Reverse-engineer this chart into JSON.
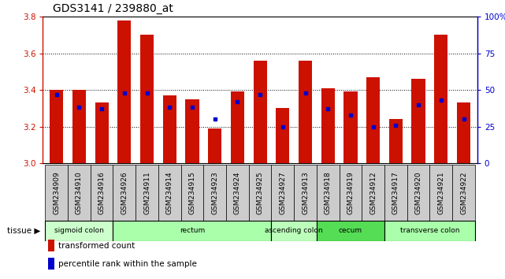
{
  "title": "GDS3141 / 239880_at",
  "samples": [
    "GSM234909",
    "GSM234910",
    "GSM234916",
    "GSM234926",
    "GSM234911",
    "GSM234914",
    "GSM234915",
    "GSM234923",
    "GSM234924",
    "GSM234925",
    "GSM234927",
    "GSM234913",
    "GSM234918",
    "GSM234919",
    "GSM234912",
    "GSM234917",
    "GSM234920",
    "GSM234921",
    "GSM234922"
  ],
  "transformed_count": [
    3.4,
    3.4,
    3.33,
    3.78,
    3.7,
    3.37,
    3.35,
    3.19,
    3.39,
    3.56,
    3.3,
    3.56,
    3.41,
    3.39,
    3.47,
    3.24,
    3.46,
    3.7,
    3.33
  ],
  "percentile_rank": [
    47,
    38,
    37,
    48,
    48,
    38,
    38,
    30,
    42,
    47,
    25,
    48,
    37,
    33,
    25,
    26,
    40,
    43,
    30
  ],
  "baseline": 3.0,
  "ylim_left": [
    3.0,
    3.8
  ],
  "ylim_right": [
    0,
    100
  ],
  "yticks_left": [
    3.0,
    3.2,
    3.4,
    3.6,
    3.8
  ],
  "yticks_right": [
    0,
    25,
    50,
    75,
    100
  ],
  "bar_color": "#cc1100",
  "marker_color": "#0000cc",
  "tissue_groups": [
    {
      "label": "sigmoid colon",
      "start": 0,
      "end": 3,
      "color": "#ccffcc"
    },
    {
      "label": "rectum",
      "start": 3,
      "end": 10,
      "color": "#aaffaa"
    },
    {
      "label": "ascending colon",
      "start": 10,
      "end": 12,
      "color": "#bbffbb"
    },
    {
      "label": "cecum",
      "start": 12,
      "end": 15,
      "color": "#55dd55"
    },
    {
      "label": "transverse colon",
      "start": 15,
      "end": 19,
      "color": "#aaffaa"
    }
  ],
  "legend_items": [
    {
      "label": "transformed count",
      "color": "#cc1100"
    },
    {
      "label": "percentile rank within the sample",
      "color": "#0000cc"
    }
  ],
  "title_fontsize": 10,
  "tick_fontsize": 6.5,
  "label_fontsize": 7.5
}
